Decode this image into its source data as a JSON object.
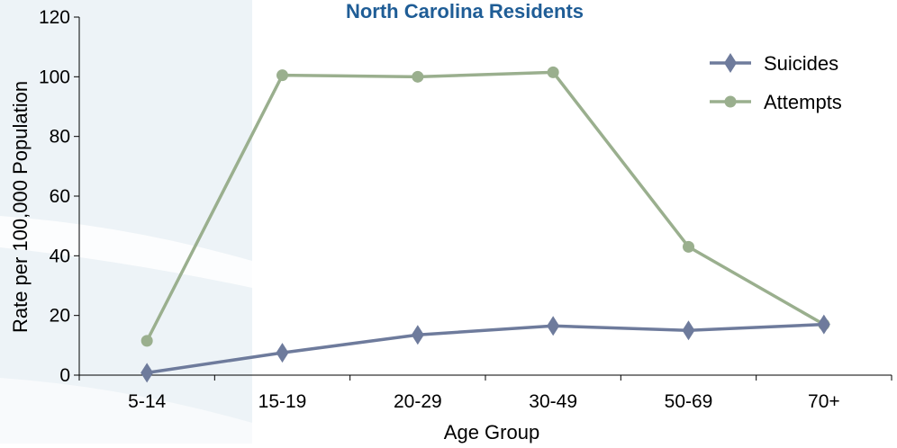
{
  "chart_data": {
    "type": "line",
    "title": "North Carolina Residents",
    "xlabel": "Age Group",
    "ylabel": "Rate per 100,000 Population",
    "categories": [
      "5-14",
      "15-19",
      "20-29",
      "30-49",
      "50-69",
      "70+"
    ],
    "ylim": [
      0,
      120
    ],
    "yticks": [
      "0",
      "20",
      "40",
      "60",
      "80",
      "100",
      "120"
    ],
    "grid": false,
    "legend_position": "top-right",
    "series": [
      {
        "name": "Suicides",
        "values": [
          0.8,
          7.5,
          13.5,
          16.5,
          15.0,
          17.0
        ],
        "color": "#6e7b9c",
        "marker": "diamond"
      },
      {
        "name": "Attempts",
        "values": [
          11.5,
          100.5,
          100.0,
          101.5,
          43.0,
          17.0
        ],
        "color": "#9aaf8e",
        "marker": "circle"
      }
    ],
    "background_accent": "#e6eef4"
  }
}
